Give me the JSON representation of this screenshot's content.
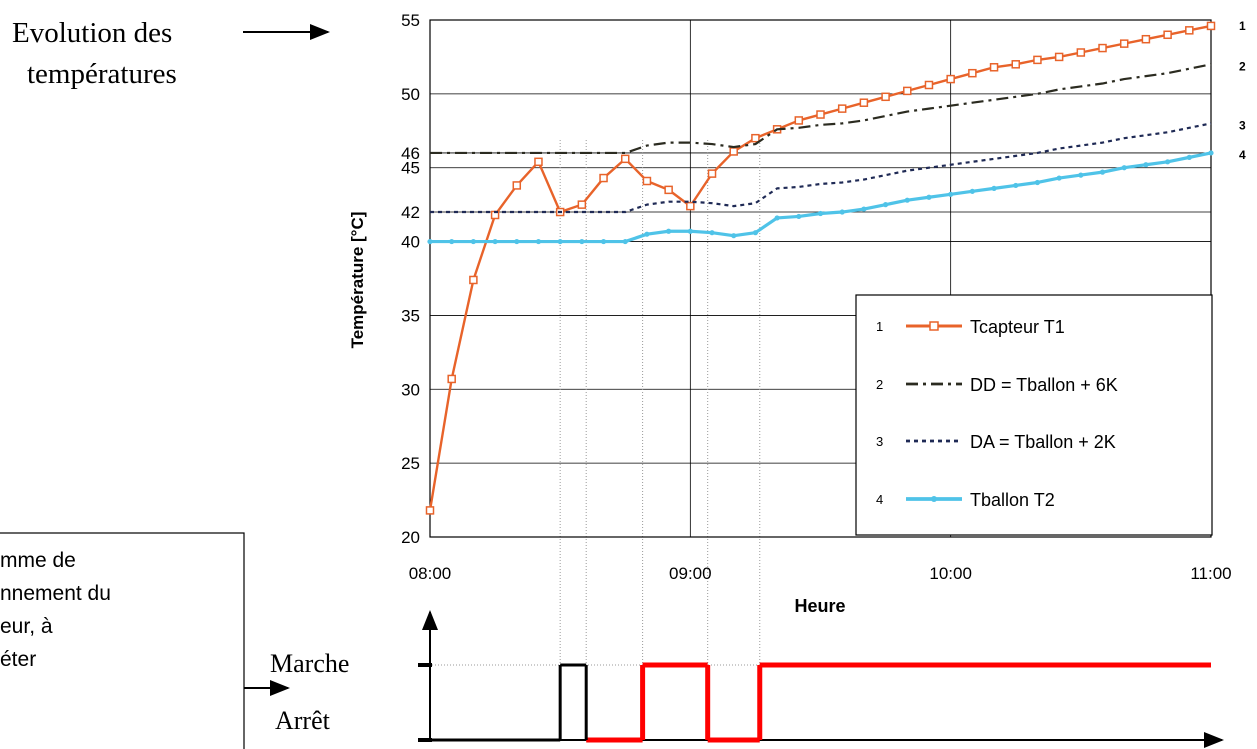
{
  "annotations": {
    "evolution_line1": "Evolution des",
    "evolution_line2": "températures",
    "box_lines": [
      "mme de",
      "nnement du",
      "eur, à",
      "éter"
    ],
    "marche": "Marche",
    "arret": "Arrêt"
  },
  "colors": {
    "tcapteur": "#e8632a",
    "dd": "#2b2b20",
    "da": "#1f2a55",
    "tballon": "#4fc3e8",
    "state_pump_off": "#000000",
    "state_pump_on": "#ff0000",
    "grid": "#000000"
  },
  "chart_data": {
    "type": "line",
    "xlabel": "Heure",
    "ylabel": "Température [°C]",
    "xlim": [
      "08:00",
      "11:00"
    ],
    "ylim": [
      20,
      55
    ],
    "x_ticks": [
      "08:00",
      "09:00",
      "10:00",
      "11:00"
    ],
    "y_ticks": [
      20,
      25,
      30,
      35,
      40,
      42,
      45,
      46,
      50,
      55
    ],
    "series_end_labels": [
      "1",
      "2",
      "3",
      "4"
    ],
    "x": [
      "08:00",
      "08:05",
      "08:10",
      "08:15",
      "08:20",
      "08:25",
      "08:30",
      "08:35",
      "08:40",
      "08:45",
      "08:50",
      "08:55",
      "09:00",
      "09:05",
      "09:10",
      "09:15",
      "09:20",
      "09:25",
      "09:30",
      "09:35",
      "09:40",
      "09:45",
      "09:50",
      "09:55",
      "10:00",
      "10:05",
      "10:10",
      "10:15",
      "10:20",
      "10:25",
      "10:30",
      "10:35",
      "10:40",
      "10:45",
      "10:50",
      "10:55",
      "11:00"
    ],
    "series": [
      {
        "name": "Tcapteur T1",
        "legend_number": "1",
        "values": [
          21.8,
          30.7,
          37.4,
          41.8,
          43.8,
          45.4,
          42.0,
          42.5,
          44.3,
          45.6,
          44.1,
          43.5,
          42.4,
          44.6,
          46.1,
          47.0,
          47.6,
          48.2,
          48.6,
          49.0,
          49.4,
          49.8,
          50.2,
          50.6,
          51.0,
          51.4,
          51.8,
          52.0,
          52.3,
          52.5,
          52.8,
          53.1,
          53.4,
          53.7,
          54.0,
          54.3,
          54.6
        ]
      },
      {
        "name": "DD = Tballon + 6K",
        "legend_number": "2",
        "values": [
          46.0,
          46.0,
          46.0,
          46.0,
          46.0,
          46.0,
          46.0,
          46.0,
          46.0,
          46.0,
          46.5,
          46.7,
          46.7,
          46.6,
          46.4,
          46.6,
          47.6,
          47.7,
          47.9,
          48.0,
          48.2,
          48.5,
          48.8,
          49.0,
          49.2,
          49.4,
          49.6,
          49.8,
          50.0,
          50.3,
          50.5,
          50.7,
          51.0,
          51.2,
          51.4,
          51.7,
          52.0
        ]
      },
      {
        "name": "DA = Tballon + 2K",
        "legend_number": "3",
        "values": [
          42.0,
          42.0,
          42.0,
          42.0,
          42.0,
          42.0,
          42.0,
          42.0,
          42.0,
          42.0,
          42.5,
          42.7,
          42.7,
          42.6,
          42.4,
          42.6,
          43.6,
          43.7,
          43.9,
          44.0,
          44.2,
          44.5,
          44.8,
          45.0,
          45.2,
          45.4,
          45.6,
          45.8,
          46.0,
          46.3,
          46.5,
          46.7,
          47.0,
          47.2,
          47.4,
          47.7,
          48.0
        ]
      },
      {
        "name": "Tballon T2",
        "legend_number": "4",
        "values": [
          40.0,
          40.0,
          40.0,
          40.0,
          40.0,
          40.0,
          40.0,
          40.0,
          40.0,
          40.0,
          40.5,
          40.7,
          40.7,
          40.6,
          40.4,
          40.6,
          41.6,
          41.7,
          41.9,
          42.0,
          42.2,
          42.5,
          42.8,
          43.0,
          43.2,
          43.4,
          43.6,
          43.8,
          44.0,
          44.3,
          44.5,
          44.7,
          45.0,
          45.2,
          45.4,
          45.7,
          46.0
        ]
      }
    ],
    "legend_placement": "bottom-right",
    "grid": true,
    "pump_state": {
      "levels": [
        "Arrêt",
        "Marche"
      ],
      "segments": [
        {
          "from": "08:00",
          "to": "08:30",
          "state": "Arrêt",
          "color": "off"
        },
        {
          "from": "08:30",
          "to": "08:36",
          "state": "Marche",
          "color": "off"
        },
        {
          "from": "08:36",
          "to": "08:49",
          "state": "Arrêt",
          "color": "on"
        },
        {
          "from": "08:49",
          "to": "09:04",
          "state": "Marche",
          "color": "on"
        },
        {
          "from": "09:04",
          "to": "09:16",
          "state": "Arrêt",
          "color": "on"
        },
        {
          "from": "09:16",
          "to": "11:00",
          "state": "Marche",
          "color": "on"
        }
      ]
    }
  }
}
